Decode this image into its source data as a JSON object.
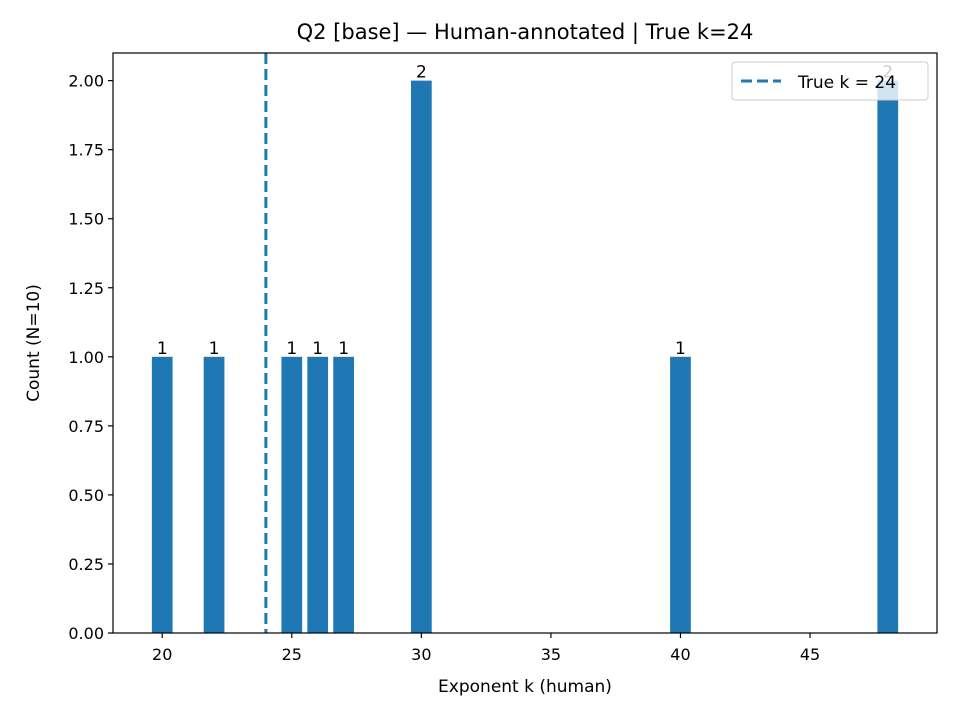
{
  "chart_data": {
    "type": "bar",
    "title": "Q2 [base] — Human-annotated | True k=24",
    "xlabel": "Exponent k (human)",
    "ylabel": "Count (N=10)",
    "x": [
      20,
      22,
      25,
      26,
      27,
      30,
      40,
      48
    ],
    "values": [
      1,
      1,
      1,
      1,
      1,
      2,
      1,
      2
    ],
    "bar_labels": [
      "1",
      "1",
      "1",
      "1",
      "1",
      "2",
      "1",
      "2"
    ],
    "bar_color": "#1f77b4",
    "xlim": [
      18.1,
      49.9
    ],
    "ylim": [
      0,
      2.1
    ],
    "xticks": [
      20,
      25,
      30,
      35,
      40,
      45
    ],
    "xtick_labels": [
      "20",
      "25",
      "30",
      "35",
      "40",
      "45"
    ],
    "yticks": [
      0,
      0.25,
      0.5,
      0.75,
      1.0,
      1.25,
      1.5,
      1.75,
      2.0
    ],
    "ytick_labels": [
      "0.00",
      "0.25",
      "0.50",
      "0.75",
      "1.00",
      "1.25",
      "1.50",
      "1.75",
      "2.00"
    ],
    "reference_line": {
      "x": 24,
      "style": "dashed",
      "color": "#1f77b4",
      "label": "True k = 24"
    },
    "legend": {
      "position": "top-right",
      "entries": [
        "True k = 24"
      ]
    },
    "grid": false
  }
}
